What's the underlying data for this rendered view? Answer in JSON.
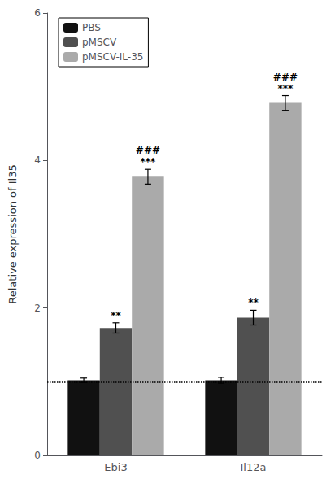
{
  "chart_data": {
    "type": "bar",
    "ylabel": "Relative expression of Il35",
    "categories": [
      "Ebi3",
      "Il12a"
    ],
    "series": [
      {
        "name": "PBS",
        "color": "#111111",
        "values": [
          1.02,
          1.02
        ],
        "errors": [
          0.03,
          0.04
        ]
      },
      {
        "name": "pMSCV",
        "color": "#505050",
        "values": [
          1.73,
          1.87
        ],
        "errors": [
          0.07,
          0.1
        ]
      },
      {
        "name": "pMSCV-IL-35",
        "color": "#aaaaaa",
        "values": [
          3.78,
          4.78
        ],
        "errors": [
          0.1,
          0.1
        ]
      }
    ],
    "annotations": [
      {
        "series": "pMSCV",
        "category": "Ebi3",
        "text": "**"
      },
      {
        "series": "pMSCV",
        "category": "Il12a",
        "text": "**"
      },
      {
        "series": "pMSCV-IL-35",
        "category": "Ebi3",
        "text": "***"
      },
      {
        "series": "pMSCV-IL-35",
        "category": "Ebi3",
        "text": "###"
      },
      {
        "series": "pMSCV-IL-35",
        "category": "Il12a",
        "text": "***"
      },
      {
        "series": "pMSCV-IL-35",
        "category": "Il12a",
        "text": "###"
      }
    ],
    "hline": 1,
    "ylim": [
      0,
      6
    ],
    "yticks": [
      0,
      2,
      4,
      6
    ],
    "grid": false,
    "legend": "upper left"
  }
}
